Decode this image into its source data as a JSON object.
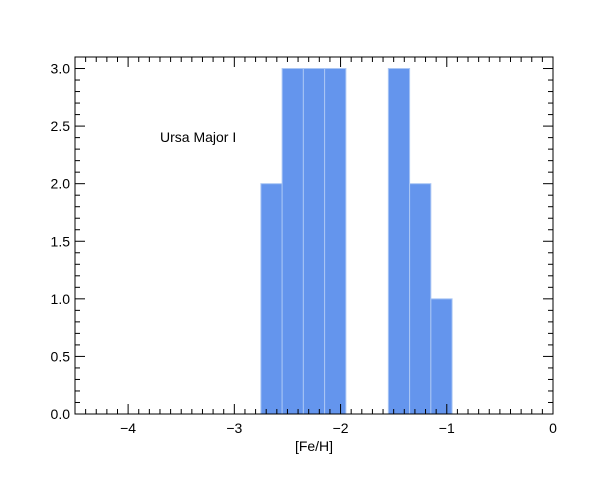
{
  "chart_data": {
    "type": "bar",
    "title": "",
    "xlabel": "[Fe/H]",
    "ylabel": "",
    "annotation": "Ursa Major I",
    "xlim": [
      -4.5,
      0
    ],
    "ylim": [
      0,
      3.1
    ],
    "x_ticks": [
      -4,
      -3,
      -2,
      -1,
      0
    ],
    "x_tick_labels": [
      "−4",
      "−3",
      "−2",
      "−1",
      "0"
    ],
    "y_ticks": [
      0,
      0.5,
      1,
      1.5,
      2,
      2.5,
      3
    ],
    "y_tick_labels": [
      "0.0",
      "0.5",
      "1.0",
      "1.5",
      "2.0",
      "2.5",
      "3.0"
    ],
    "x_minor_step": 0.1,
    "y_minor_step": 0.1,
    "grid": false,
    "bar_color": "#6495ED",
    "bar_edge_color": "#aac6f4",
    "bins": [
      {
        "x0": -2.75,
        "x1": -2.55,
        "value": 2
      },
      {
        "x0": -2.55,
        "x1": -2.35,
        "value": 3
      },
      {
        "x0": -2.35,
        "x1": -2.15,
        "value": 3
      },
      {
        "x0": -2.15,
        "x1": -1.95,
        "value": 3
      },
      {
        "x0": -1.95,
        "x1": -1.75,
        "value": 0
      },
      {
        "x0": -1.75,
        "x1": -1.55,
        "value": 0
      },
      {
        "x0": -1.55,
        "x1": -1.35,
        "value": 3
      },
      {
        "x0": -1.35,
        "x1": -1.15,
        "value": 2
      },
      {
        "x0": -1.15,
        "x1": -0.95,
        "value": 1
      }
    ]
  }
}
